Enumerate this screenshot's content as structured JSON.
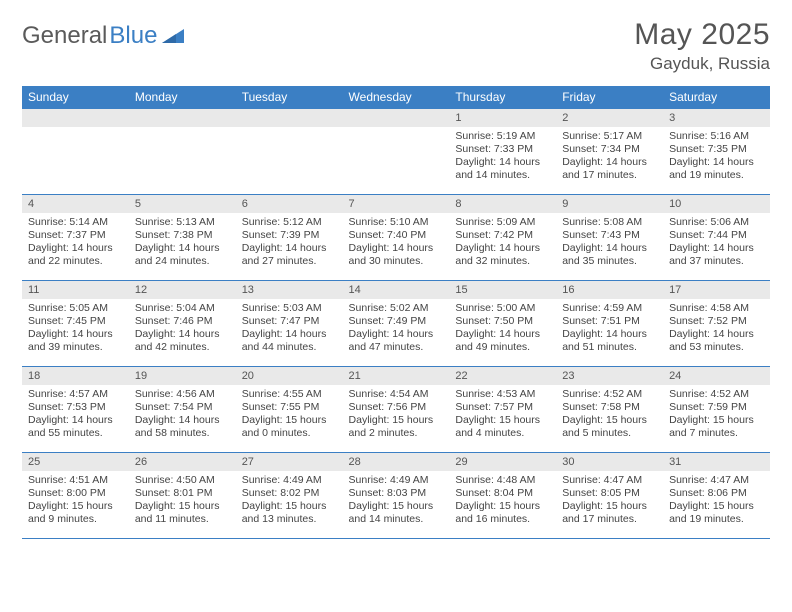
{
  "logo": {
    "text1": "General",
    "text2": "Blue"
  },
  "header": {
    "month": "May 2025",
    "location": "Gayduk, Russia"
  },
  "day_labels": [
    "Sunday",
    "Monday",
    "Tuesday",
    "Wednesday",
    "Thursday",
    "Friday",
    "Saturday"
  ],
  "colors": {
    "header_bg": "#3b7fc4",
    "header_text": "#ffffff",
    "daynum_bg": "#e9e9e9",
    "border": "#3b7fc4",
    "text": "#444444"
  },
  "weeks": [
    [
      {
        "n": "",
        "sunrise": "",
        "sunset": "",
        "daylight": ""
      },
      {
        "n": "",
        "sunrise": "",
        "sunset": "",
        "daylight": ""
      },
      {
        "n": "",
        "sunrise": "",
        "sunset": "",
        "daylight": ""
      },
      {
        "n": "",
        "sunrise": "",
        "sunset": "",
        "daylight": ""
      },
      {
        "n": "1",
        "sunrise": "Sunrise: 5:19 AM",
        "sunset": "Sunset: 7:33 PM",
        "daylight": "Daylight: 14 hours and 14 minutes."
      },
      {
        "n": "2",
        "sunrise": "Sunrise: 5:17 AM",
        "sunset": "Sunset: 7:34 PM",
        "daylight": "Daylight: 14 hours and 17 minutes."
      },
      {
        "n": "3",
        "sunrise": "Sunrise: 5:16 AM",
        "sunset": "Sunset: 7:35 PM",
        "daylight": "Daylight: 14 hours and 19 minutes."
      }
    ],
    [
      {
        "n": "4",
        "sunrise": "Sunrise: 5:14 AM",
        "sunset": "Sunset: 7:37 PM",
        "daylight": "Daylight: 14 hours and 22 minutes."
      },
      {
        "n": "5",
        "sunrise": "Sunrise: 5:13 AM",
        "sunset": "Sunset: 7:38 PM",
        "daylight": "Daylight: 14 hours and 24 minutes."
      },
      {
        "n": "6",
        "sunrise": "Sunrise: 5:12 AM",
        "sunset": "Sunset: 7:39 PM",
        "daylight": "Daylight: 14 hours and 27 minutes."
      },
      {
        "n": "7",
        "sunrise": "Sunrise: 5:10 AM",
        "sunset": "Sunset: 7:40 PM",
        "daylight": "Daylight: 14 hours and 30 minutes."
      },
      {
        "n": "8",
        "sunrise": "Sunrise: 5:09 AM",
        "sunset": "Sunset: 7:42 PM",
        "daylight": "Daylight: 14 hours and 32 minutes."
      },
      {
        "n": "9",
        "sunrise": "Sunrise: 5:08 AM",
        "sunset": "Sunset: 7:43 PM",
        "daylight": "Daylight: 14 hours and 35 minutes."
      },
      {
        "n": "10",
        "sunrise": "Sunrise: 5:06 AM",
        "sunset": "Sunset: 7:44 PM",
        "daylight": "Daylight: 14 hours and 37 minutes."
      }
    ],
    [
      {
        "n": "11",
        "sunrise": "Sunrise: 5:05 AM",
        "sunset": "Sunset: 7:45 PM",
        "daylight": "Daylight: 14 hours and 39 minutes."
      },
      {
        "n": "12",
        "sunrise": "Sunrise: 5:04 AM",
        "sunset": "Sunset: 7:46 PM",
        "daylight": "Daylight: 14 hours and 42 minutes."
      },
      {
        "n": "13",
        "sunrise": "Sunrise: 5:03 AM",
        "sunset": "Sunset: 7:47 PM",
        "daylight": "Daylight: 14 hours and 44 minutes."
      },
      {
        "n": "14",
        "sunrise": "Sunrise: 5:02 AM",
        "sunset": "Sunset: 7:49 PM",
        "daylight": "Daylight: 14 hours and 47 minutes."
      },
      {
        "n": "15",
        "sunrise": "Sunrise: 5:00 AM",
        "sunset": "Sunset: 7:50 PM",
        "daylight": "Daylight: 14 hours and 49 minutes."
      },
      {
        "n": "16",
        "sunrise": "Sunrise: 4:59 AM",
        "sunset": "Sunset: 7:51 PM",
        "daylight": "Daylight: 14 hours and 51 minutes."
      },
      {
        "n": "17",
        "sunrise": "Sunrise: 4:58 AM",
        "sunset": "Sunset: 7:52 PM",
        "daylight": "Daylight: 14 hours and 53 minutes."
      }
    ],
    [
      {
        "n": "18",
        "sunrise": "Sunrise: 4:57 AM",
        "sunset": "Sunset: 7:53 PM",
        "daylight": "Daylight: 14 hours and 55 minutes."
      },
      {
        "n": "19",
        "sunrise": "Sunrise: 4:56 AM",
        "sunset": "Sunset: 7:54 PM",
        "daylight": "Daylight: 14 hours and 58 minutes."
      },
      {
        "n": "20",
        "sunrise": "Sunrise: 4:55 AM",
        "sunset": "Sunset: 7:55 PM",
        "daylight": "Daylight: 15 hours and 0 minutes."
      },
      {
        "n": "21",
        "sunrise": "Sunrise: 4:54 AM",
        "sunset": "Sunset: 7:56 PM",
        "daylight": "Daylight: 15 hours and 2 minutes."
      },
      {
        "n": "22",
        "sunrise": "Sunrise: 4:53 AM",
        "sunset": "Sunset: 7:57 PM",
        "daylight": "Daylight: 15 hours and 4 minutes."
      },
      {
        "n": "23",
        "sunrise": "Sunrise: 4:52 AM",
        "sunset": "Sunset: 7:58 PM",
        "daylight": "Daylight: 15 hours and 5 minutes."
      },
      {
        "n": "24",
        "sunrise": "Sunrise: 4:52 AM",
        "sunset": "Sunset: 7:59 PM",
        "daylight": "Daylight: 15 hours and 7 minutes."
      }
    ],
    [
      {
        "n": "25",
        "sunrise": "Sunrise: 4:51 AM",
        "sunset": "Sunset: 8:00 PM",
        "daylight": "Daylight: 15 hours and 9 minutes."
      },
      {
        "n": "26",
        "sunrise": "Sunrise: 4:50 AM",
        "sunset": "Sunset: 8:01 PM",
        "daylight": "Daylight: 15 hours and 11 minutes."
      },
      {
        "n": "27",
        "sunrise": "Sunrise: 4:49 AM",
        "sunset": "Sunset: 8:02 PM",
        "daylight": "Daylight: 15 hours and 13 minutes."
      },
      {
        "n": "28",
        "sunrise": "Sunrise: 4:49 AM",
        "sunset": "Sunset: 8:03 PM",
        "daylight": "Daylight: 15 hours and 14 minutes."
      },
      {
        "n": "29",
        "sunrise": "Sunrise: 4:48 AM",
        "sunset": "Sunset: 8:04 PM",
        "daylight": "Daylight: 15 hours and 16 minutes."
      },
      {
        "n": "30",
        "sunrise": "Sunrise: 4:47 AM",
        "sunset": "Sunset: 8:05 PM",
        "daylight": "Daylight: 15 hours and 17 minutes."
      },
      {
        "n": "31",
        "sunrise": "Sunrise: 4:47 AM",
        "sunset": "Sunset: 8:06 PM",
        "daylight": "Daylight: 15 hours and 19 minutes."
      }
    ]
  ]
}
